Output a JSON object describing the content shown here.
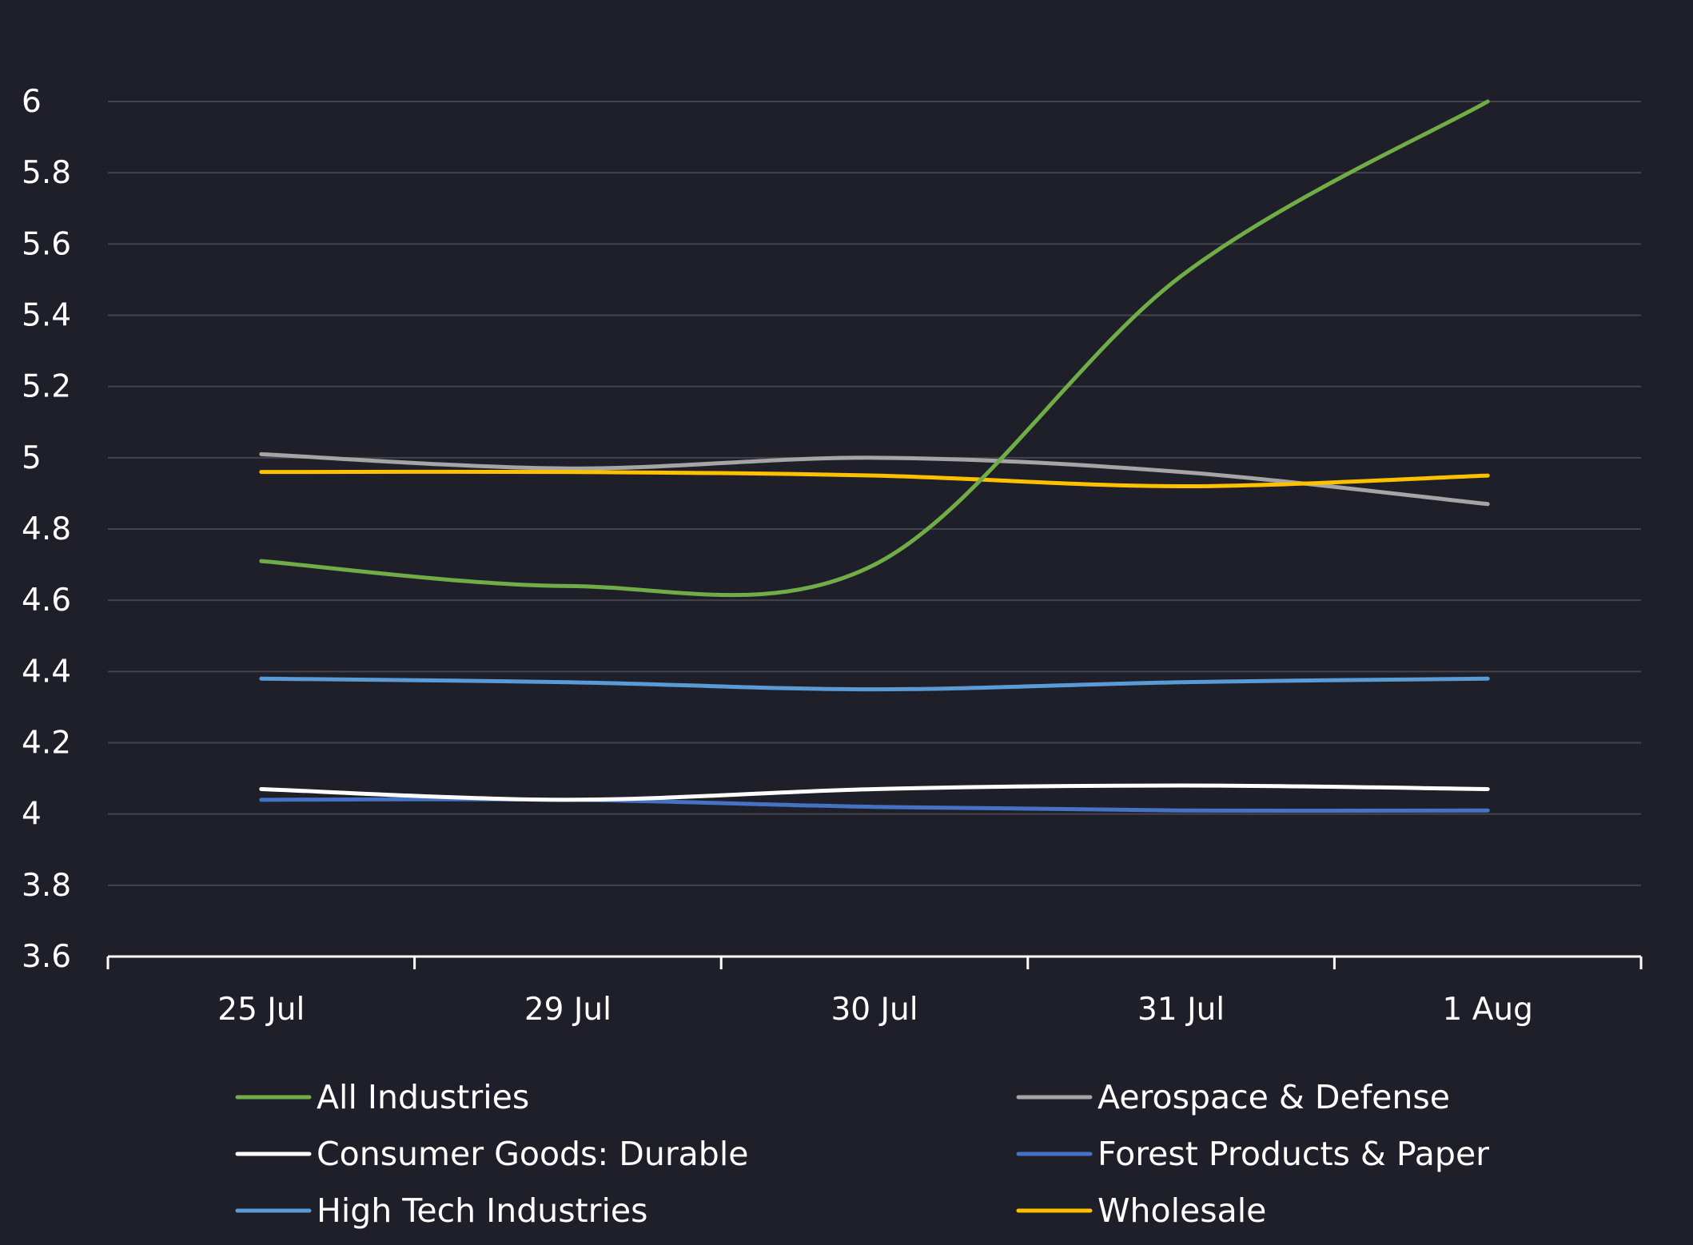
{
  "chart_data": {
    "type": "line",
    "title": "",
    "xlabel": "",
    "ylabel": "",
    "categories": [
      "25 Jul",
      "29 Jul",
      "30 Jul",
      "31 Jul",
      "1 Aug"
    ],
    "ylim": [
      3.6,
      6
    ],
    "yticks": [
      "3.6",
      "3.8",
      "4",
      "4.2",
      "4.4",
      "4.6",
      "4.8",
      "5",
      "5.2",
      "5.4",
      "5.6",
      "5.8",
      "6"
    ],
    "grid": true,
    "legend_position": "bottom",
    "series": [
      {
        "name": "All Industries",
        "color": "#70ad47",
        "values": [
          4.71,
          4.64,
          4.7,
          5.51,
          6.0
        ]
      },
      {
        "name": "Aerospace & Defense",
        "color": "#a5a5a5",
        "values": [
          5.01,
          4.97,
          5.0,
          4.96,
          4.87
        ]
      },
      {
        "name": "Consumer Goods: Durable",
        "color": "#ffffff",
        "values": [
          4.07,
          4.04,
          4.07,
          4.08,
          4.07
        ]
      },
      {
        "name": "Forest Products & Paper",
        "color": "#4472c4",
        "values": [
          4.04,
          4.04,
          4.02,
          4.01,
          4.01
        ]
      },
      {
        "name": "High Tech Industries",
        "color": "#5b9bd5",
        "values": [
          4.38,
          4.37,
          4.35,
          4.37,
          4.38
        ]
      },
      {
        "name": "Wholesale",
        "color": "#ffc000",
        "values": [
          4.96,
          4.96,
          4.95,
          4.92,
          4.95
        ]
      }
    ],
    "colors": {
      "background": "#1f1f2a",
      "gridline": "#44444e",
      "axis": "#ffffff",
      "text": "#ffffff"
    }
  }
}
